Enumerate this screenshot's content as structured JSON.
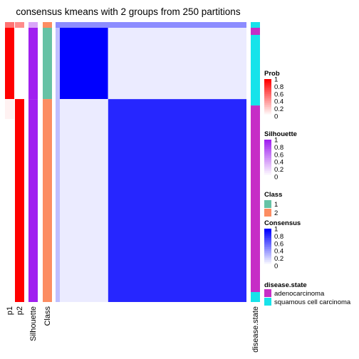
{
  "title": "consensus kmeans with 2 groups from 250 partitions",
  "colors": {
    "prob_max": "#ff0000",
    "silhouette_max": "#a020f0",
    "class_1": "#66c2a5",
    "class_2": "#fc8d62",
    "consensus_max": "#0000ff",
    "adenocarcinoma": "#c62ec6",
    "squamous": "#17e3ea"
  },
  "annotation_labels": {
    "p1": "p1",
    "p2": "p2",
    "silhouette": "Silhouette",
    "class": "Class",
    "disease_state": "disease.state"
  },
  "legends": {
    "prob": {
      "title": "Prob",
      "ticks": [
        "1",
        "0.8",
        "0.6",
        "0.4",
        "0.2",
        "0"
      ]
    },
    "silhouette": {
      "title": "Silhouette",
      "ticks": [
        "1",
        "0.8",
        "0.6",
        "0.4",
        "0.2",
        "0"
      ]
    },
    "class": {
      "title": "Class",
      "items": [
        "1",
        "2"
      ]
    },
    "consensus": {
      "title": "Consensus",
      "ticks": [
        "1",
        "0.8",
        "0.6",
        "0.4",
        "0.2",
        "0"
      ]
    },
    "disease_state": {
      "title": "disease.state",
      "items": [
        "adenocarcinoma",
        "squamous cell carcinoma"
      ]
    }
  },
  "chart_data": {
    "type": "heatmap",
    "title": "consensus kmeans with 2 groups from 250 partitions",
    "groups": [
      {
        "class": 1,
        "sample_fraction": 0.275,
        "p1": 1,
        "p2": 0,
        "silhouette": 1
      },
      {
        "class": 2,
        "sample_fraction": 0.725,
        "p1": 0,
        "p2": 1,
        "silhouette": 1
      }
    ],
    "consensus": {
      "within_class_1": 1.0,
      "within_class_2": 0.85,
      "between_classes": 0.08,
      "outlier_row_value": 0.15
    },
    "disease_state": {
      "class_1": [
        "squamous cell carcinoma",
        "adenocarcinoma"
      ],
      "class_2": [
        "adenocarcinoma",
        "squamous cell carcinoma"
      ]
    },
    "legend_scale": [
      0,
      0.2,
      0.4,
      0.6,
      0.8,
      1
    ]
  }
}
